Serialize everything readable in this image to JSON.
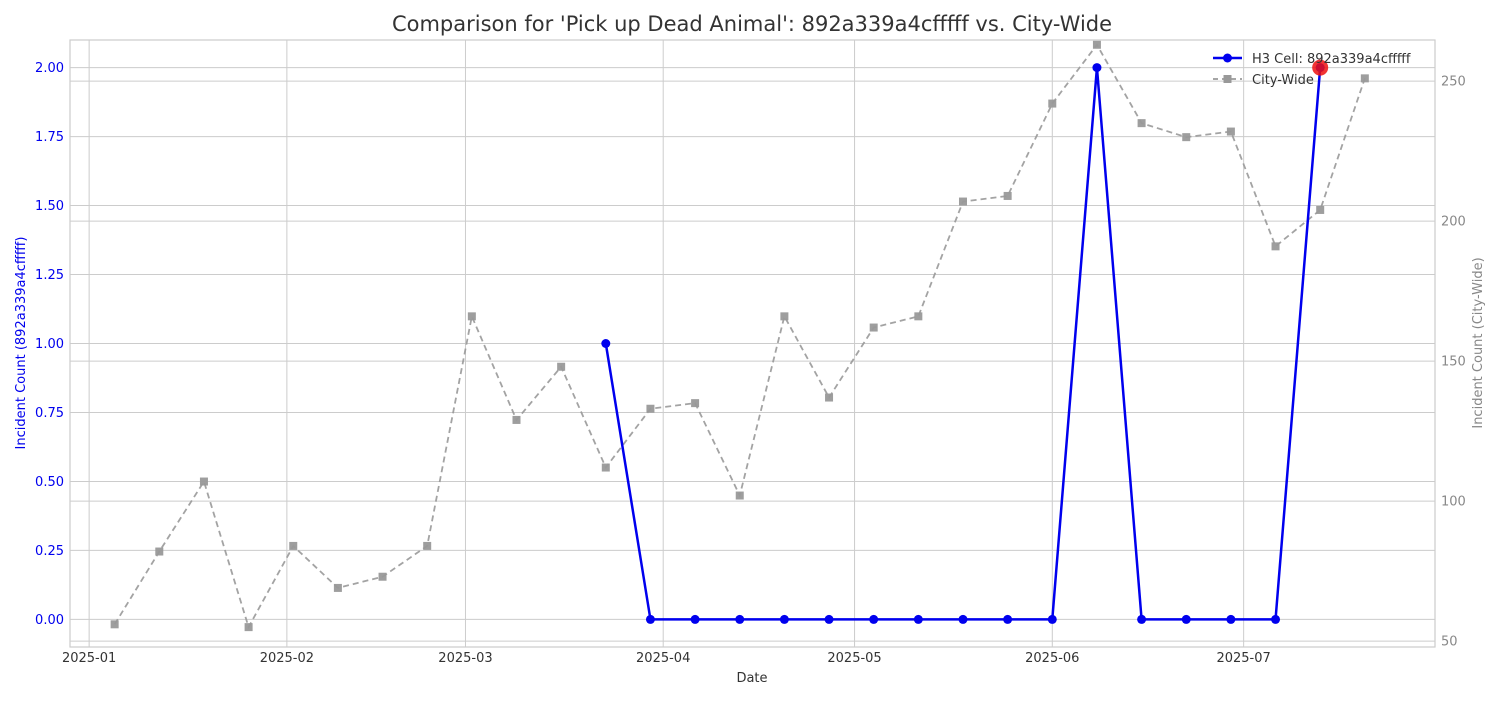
{
  "chart_data": {
    "type": "line",
    "title": "Comparison for 'Pick up Dead Animal': 892a339a4cfffff vs. City-Wide",
    "xlabel": "Date",
    "ylabel_left": "Incident Count (892a339a4cfffff)",
    "ylabel_right": "Incident Count (City-Wide)",
    "x_ticks": [
      "2025-01",
      "2025-02",
      "2025-03",
      "2025-04",
      "2025-05",
      "2025-06",
      "2025-07"
    ],
    "y_left_ticks": [
      "0.00",
      "0.25",
      "0.50",
      "0.75",
      "1.00",
      "1.25",
      "1.50",
      "1.75",
      "2.00"
    ],
    "y_right_ticks": [
      "50",
      "100",
      "150",
      "200",
      "250"
    ],
    "xlim": [
      "2024-12-29",
      "2025-07-31"
    ],
    "ylim_left": [
      -0.1,
      2.1
    ],
    "ylim_right": [
      47.9,
      264.7
    ],
    "grid": true,
    "legend_position": "top-right",
    "colors": {
      "cell": "#0000ee",
      "city": "#999999",
      "highlight": "#ee1111",
      "text": "#333333"
    },
    "series": [
      {
        "name": "H3 Cell: 892a339a4cfffff",
        "axis": "left",
        "x": [
          "2025-03-23",
          "2025-03-30",
          "2025-04-06",
          "2025-04-13",
          "2025-04-20",
          "2025-04-27",
          "2025-05-04",
          "2025-05-11",
          "2025-05-18",
          "2025-05-25",
          "2025-06-01",
          "2025-06-08",
          "2025-06-15",
          "2025-06-22",
          "2025-06-29",
          "2025-07-06",
          "2025-07-13"
        ],
        "values": [
          1,
          0,
          0,
          0,
          0,
          0,
          0,
          0,
          0,
          0,
          0,
          2,
          0,
          0,
          0,
          0,
          2
        ]
      },
      {
        "name": "City-Wide",
        "axis": "right",
        "x": [
          "2025-01-05",
          "2025-01-12",
          "2025-01-19",
          "2025-01-26",
          "2025-02-02",
          "2025-02-09",
          "2025-02-16",
          "2025-02-23",
          "2025-03-02",
          "2025-03-09",
          "2025-03-16",
          "2025-03-23",
          "2025-03-30",
          "2025-04-06",
          "2025-04-13",
          "2025-04-20",
          "2025-04-27",
          "2025-05-04",
          "2025-05-11",
          "2025-05-18",
          "2025-05-25",
          "2025-06-01",
          "2025-06-08",
          "2025-06-15",
          "2025-06-22",
          "2025-06-29",
          "2025-07-06",
          "2025-07-13",
          "2025-07-20"
        ],
        "values": [
          56,
          82,
          107,
          55,
          84,
          69,
          73,
          84,
          166,
          129,
          148,
          112,
          133,
          135,
          102,
          166,
          137,
          162,
          166,
          207,
          209,
          242,
          263,
          235,
          230,
          232,
          191,
          204,
          251
        ]
      }
    ],
    "highlight_point": {
      "x": "2025-07-13",
      "value": 2
    }
  }
}
